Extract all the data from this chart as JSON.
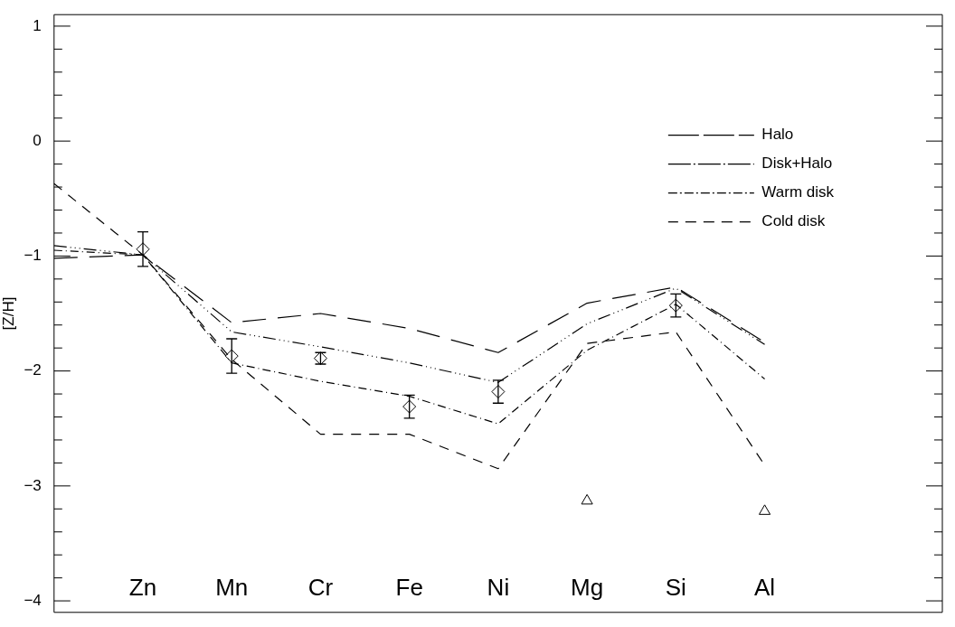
{
  "chart_data": {
    "type": "line",
    "ylabel": "[Z/H]",
    "categories": [
      null,
      "Zn",
      "Mn",
      "Cr",
      "Fe",
      "Ni",
      "Mg",
      "Si",
      "Al",
      null,
      null
    ],
    "ylim": [
      -4.1,
      1.1
    ],
    "yticks": [
      -4,
      {
        "value": -3.8,
        "label": null
      },
      {
        "value": -3.6,
        "label": null
      },
      {
        "value": -3.4,
        "label": null
      },
      {
        "value": -3.2,
        "label": null
      },
      -3,
      {
        "value": -2.8,
        "label": null
      },
      {
        "value": -2.6,
        "label": null
      },
      {
        "value": -2.4,
        "label": null
      },
      {
        "value": -2.2,
        "label": null
      },
      -2,
      {
        "value": -1.8,
        "label": null
      },
      {
        "value": -1.6,
        "label": null
      },
      {
        "value": -1.4,
        "label": null
      },
      {
        "value": -1.2,
        "label": null
      },
      -1,
      {
        "value": -0.8,
        "label": null
      },
      {
        "value": -0.6,
        "label": null
      },
      {
        "value": -0.4,
        "label": null
      },
      {
        "value": -0.2,
        "label": null
      },
      0,
      {
        "value": 0.2,
        "label": null
      },
      {
        "value": 0.4,
        "label": null
      },
      {
        "value": 0.6,
        "label": null
      },
      {
        "value": 0.8,
        "label": null
      },
      1
    ],
    "legend": "top right",
    "grid": false,
    "series": [
      {
        "name": "Halo",
        "color": "#000000",
        "line_style": "dashed",
        "marker": "none",
        "values": [
          -1.02,
          -0.99,
          -1.58,
          -1.5,
          -1.63,
          -1.84,
          -1.41,
          -1.27,
          -1.75,
          null,
          null
        ]
      },
      {
        "name": "Disk+Halo",
        "color": "#000000",
        "line_style": "dashed",
        "marker": "none",
        "values": [
          -0.91,
          -0.99,
          -1.66,
          -1.79,
          -1.93,
          -2.1,
          -1.59,
          -1.28,
          -1.77,
          null,
          null
        ]
      },
      {
        "name": "Warm disk",
        "color": "#000000",
        "line_style": "dashed",
        "marker": "none",
        "values": [
          -0.95,
          -0.99,
          -1.93,
          -2.09,
          -2.22,
          -2.46,
          -1.82,
          -1.42,
          -2.07,
          null,
          null
        ]
      },
      {
        "name": "Cold disk",
        "color": "#000000",
        "line_style": "dashed",
        "marker": "none",
        "values": [
          -0.37,
          -0.99,
          -1.9,
          -2.55,
          -2.55,
          -2.85,
          -1.76,
          -1.66,
          -2.82,
          null,
          null
        ]
      },
      {
        "type": "scatter",
        "color": "#000000",
        "marker": "diamond",
        "values": [
          null,
          -0.94,
          -1.87,
          -1.89,
          -2.31,
          -2.18,
          null,
          -1.43,
          null,
          null,
          null
        ],
        "errors": [
          null,
          0.15,
          0.15,
          0.05,
          0.1,
          0.1,
          null,
          0.1,
          null,
          null,
          null
        ]
      },
      {
        "type": "scatter",
        "color": "#000000",
        "marker": "triangle",
        "values": [
          null,
          null,
          null,
          null,
          null,
          null,
          -3.13,
          null,
          -3.22,
          null,
          null
        ]
      }
    ]
  }
}
